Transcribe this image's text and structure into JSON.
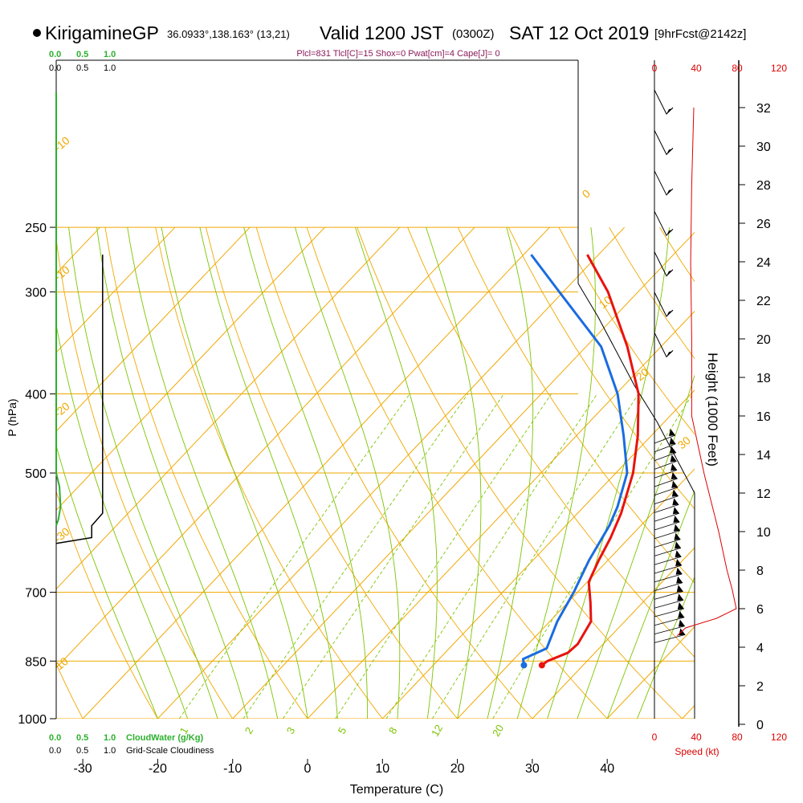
{
  "header": {
    "station": "KirigamineGP",
    "coords": "36.0933°,138.163° (13,21)",
    "valid": "Valid 1200 JST",
    "zulu": "(0300Z)",
    "date": "SAT 12 Oct 2019",
    "forecast": "[9hrFcst@2142z]"
  },
  "indices": "Plcl=831 Tlcl[C]=15 Shox=0 Pwat[cm]=4 Cape[J]= 0",
  "colors": {
    "temperature": "#e8130f",
    "dewpoint": "#1a6ce0",
    "isotherm_isobar": "#f0a800",
    "dry_adiabat": "#f0a800",
    "moist_adiabat": "#7cc400",
    "mixing_ratio": "#7cc400",
    "cloud_water": "#2db02d",
    "speed": "#dd0000"
  },
  "labels": {
    "x_axis": "Temperature (C)",
    "y_axis": "P (hPa)",
    "height_axis": "Height (1000 Feet)",
    "cloudwater_title": "CloudWater (g/Kg)",
    "cloudiness_title": "Grid-Scale Cloudiness",
    "speed_title": "Speed (kt)"
  },
  "scales": {
    "cloudwater_ticks": [
      "0.0",
      "0.5",
      "1.0"
    ],
    "cloudiness_ticks": [
      "0.0",
      "0.5",
      "1.0"
    ],
    "speed_ticks": [
      "0",
      "40",
      "80",
      "120"
    ]
  },
  "chart_data": {
    "type": "skew-t",
    "pressure_ticks": [
      250,
      300,
      400,
      500,
      700,
      850,
      1000
    ],
    "temperature_ticks": [
      -30,
      -20,
      -10,
      0,
      10,
      20,
      30,
      40
    ],
    "height_ticks_kft": [
      0,
      2,
      4,
      6,
      8,
      10,
      12,
      14,
      16,
      18,
      20,
      22,
      24,
      26,
      28,
      30,
      32
    ],
    "pressure_range_hpa": [
      1000,
      250
    ],
    "dry_adiabat_labels": [
      "0",
      "10",
      "20",
      "30",
      "-10",
      "-20",
      "-30",
      "10"
    ],
    "moist_adiabat_labels": [],
    "mixing_ratio_labels": [
      "1",
      "2",
      "3",
      "5",
      "8",
      "12",
      "20"
    ],
    "temperature_profile": [
      {
        "p": 860,
        "t": 24.5
      },
      {
        "p": 850,
        "t": 24.7
      },
      {
        "p": 830,
        "t": 26.4
      },
      {
        "p": 810,
        "t": 26.6
      },
      {
        "p": 760,
        "t": 25.5
      },
      {
        "p": 720,
        "t": 23.0
      },
      {
        "p": 680,
        "t": 20.2
      },
      {
        "p": 640,
        "t": 18.8
      },
      {
        "p": 600,
        "t": 17.5
      },
      {
        "p": 560,
        "t": 15.8
      },
      {
        "p": 500,
        "t": 12.3
      },
      {
        "p": 450,
        "t": 8.2
      },
      {
        "p": 400,
        "t": 3.0
      },
      {
        "p": 350,
        "t": -4.5
      },
      {
        "p": 300,
        "t": -14.0
      },
      {
        "p": 270,
        "t": -21.5
      }
    ],
    "dewpoint_profile": [
      {
        "p": 860,
        "t": 22.1
      },
      {
        "p": 845,
        "t": 21.2
      },
      {
        "p": 820,
        "t": 23.0
      },
      {
        "p": 760,
        "t": 21.0
      },
      {
        "p": 700,
        "t": 19.5
      },
      {
        "p": 640,
        "t": 17.5
      },
      {
        "p": 580,
        "t": 15.8
      },
      {
        "p": 550,
        "t": 14.5
      },
      {
        "p": 500,
        "t": 11.5
      },
      {
        "p": 450,
        "t": 6.3
      },
      {
        "p": 400,
        "t": 0.2
      },
      {
        "p": 350,
        "t": -8.0
      },
      {
        "p": 300,
        "t": -20.5
      },
      {
        "p": 270,
        "t": -29.0
      }
    ],
    "wind_speed_profile_kt": [
      {
        "h": 4.6,
        "s": 22
      },
      {
        "h": 5.0,
        "s": 30
      },
      {
        "h": 5.5,
        "s": 60
      },
      {
        "h": 6.0,
        "s": 79
      },
      {
        "h": 7.0,
        "s": 75
      },
      {
        "h": 8.0,
        "s": 70
      },
      {
        "h": 10.0,
        "s": 62
      },
      {
        "h": 13.0,
        "s": 48
      },
      {
        "h": 16.0,
        "s": 36
      },
      {
        "h": 20.0,
        "s": 36
      },
      {
        "h": 24.0,
        "s": 35
      },
      {
        "h": 28.0,
        "s": 36
      },
      {
        "h": 32.0,
        "s": 38
      }
    ],
    "cloud_water_profile": [
      {
        "p": 500,
        "v": 0.0
      },
      {
        "p": 520,
        "v": 0.06
      },
      {
        "p": 550,
        "v": 0.08
      },
      {
        "p": 570,
        "v": 0.04
      },
      {
        "p": 580,
        "v": 0.0
      }
    ],
    "cloudiness_profile": [
      {
        "p": 270,
        "v": 0.85
      },
      {
        "p": 560,
        "v": 0.85
      },
      {
        "p": 580,
        "v": 0.65
      },
      {
        "p": 600,
        "v": 0.65
      },
      {
        "p": 610,
        "v": 0.0
      }
    ]
  }
}
